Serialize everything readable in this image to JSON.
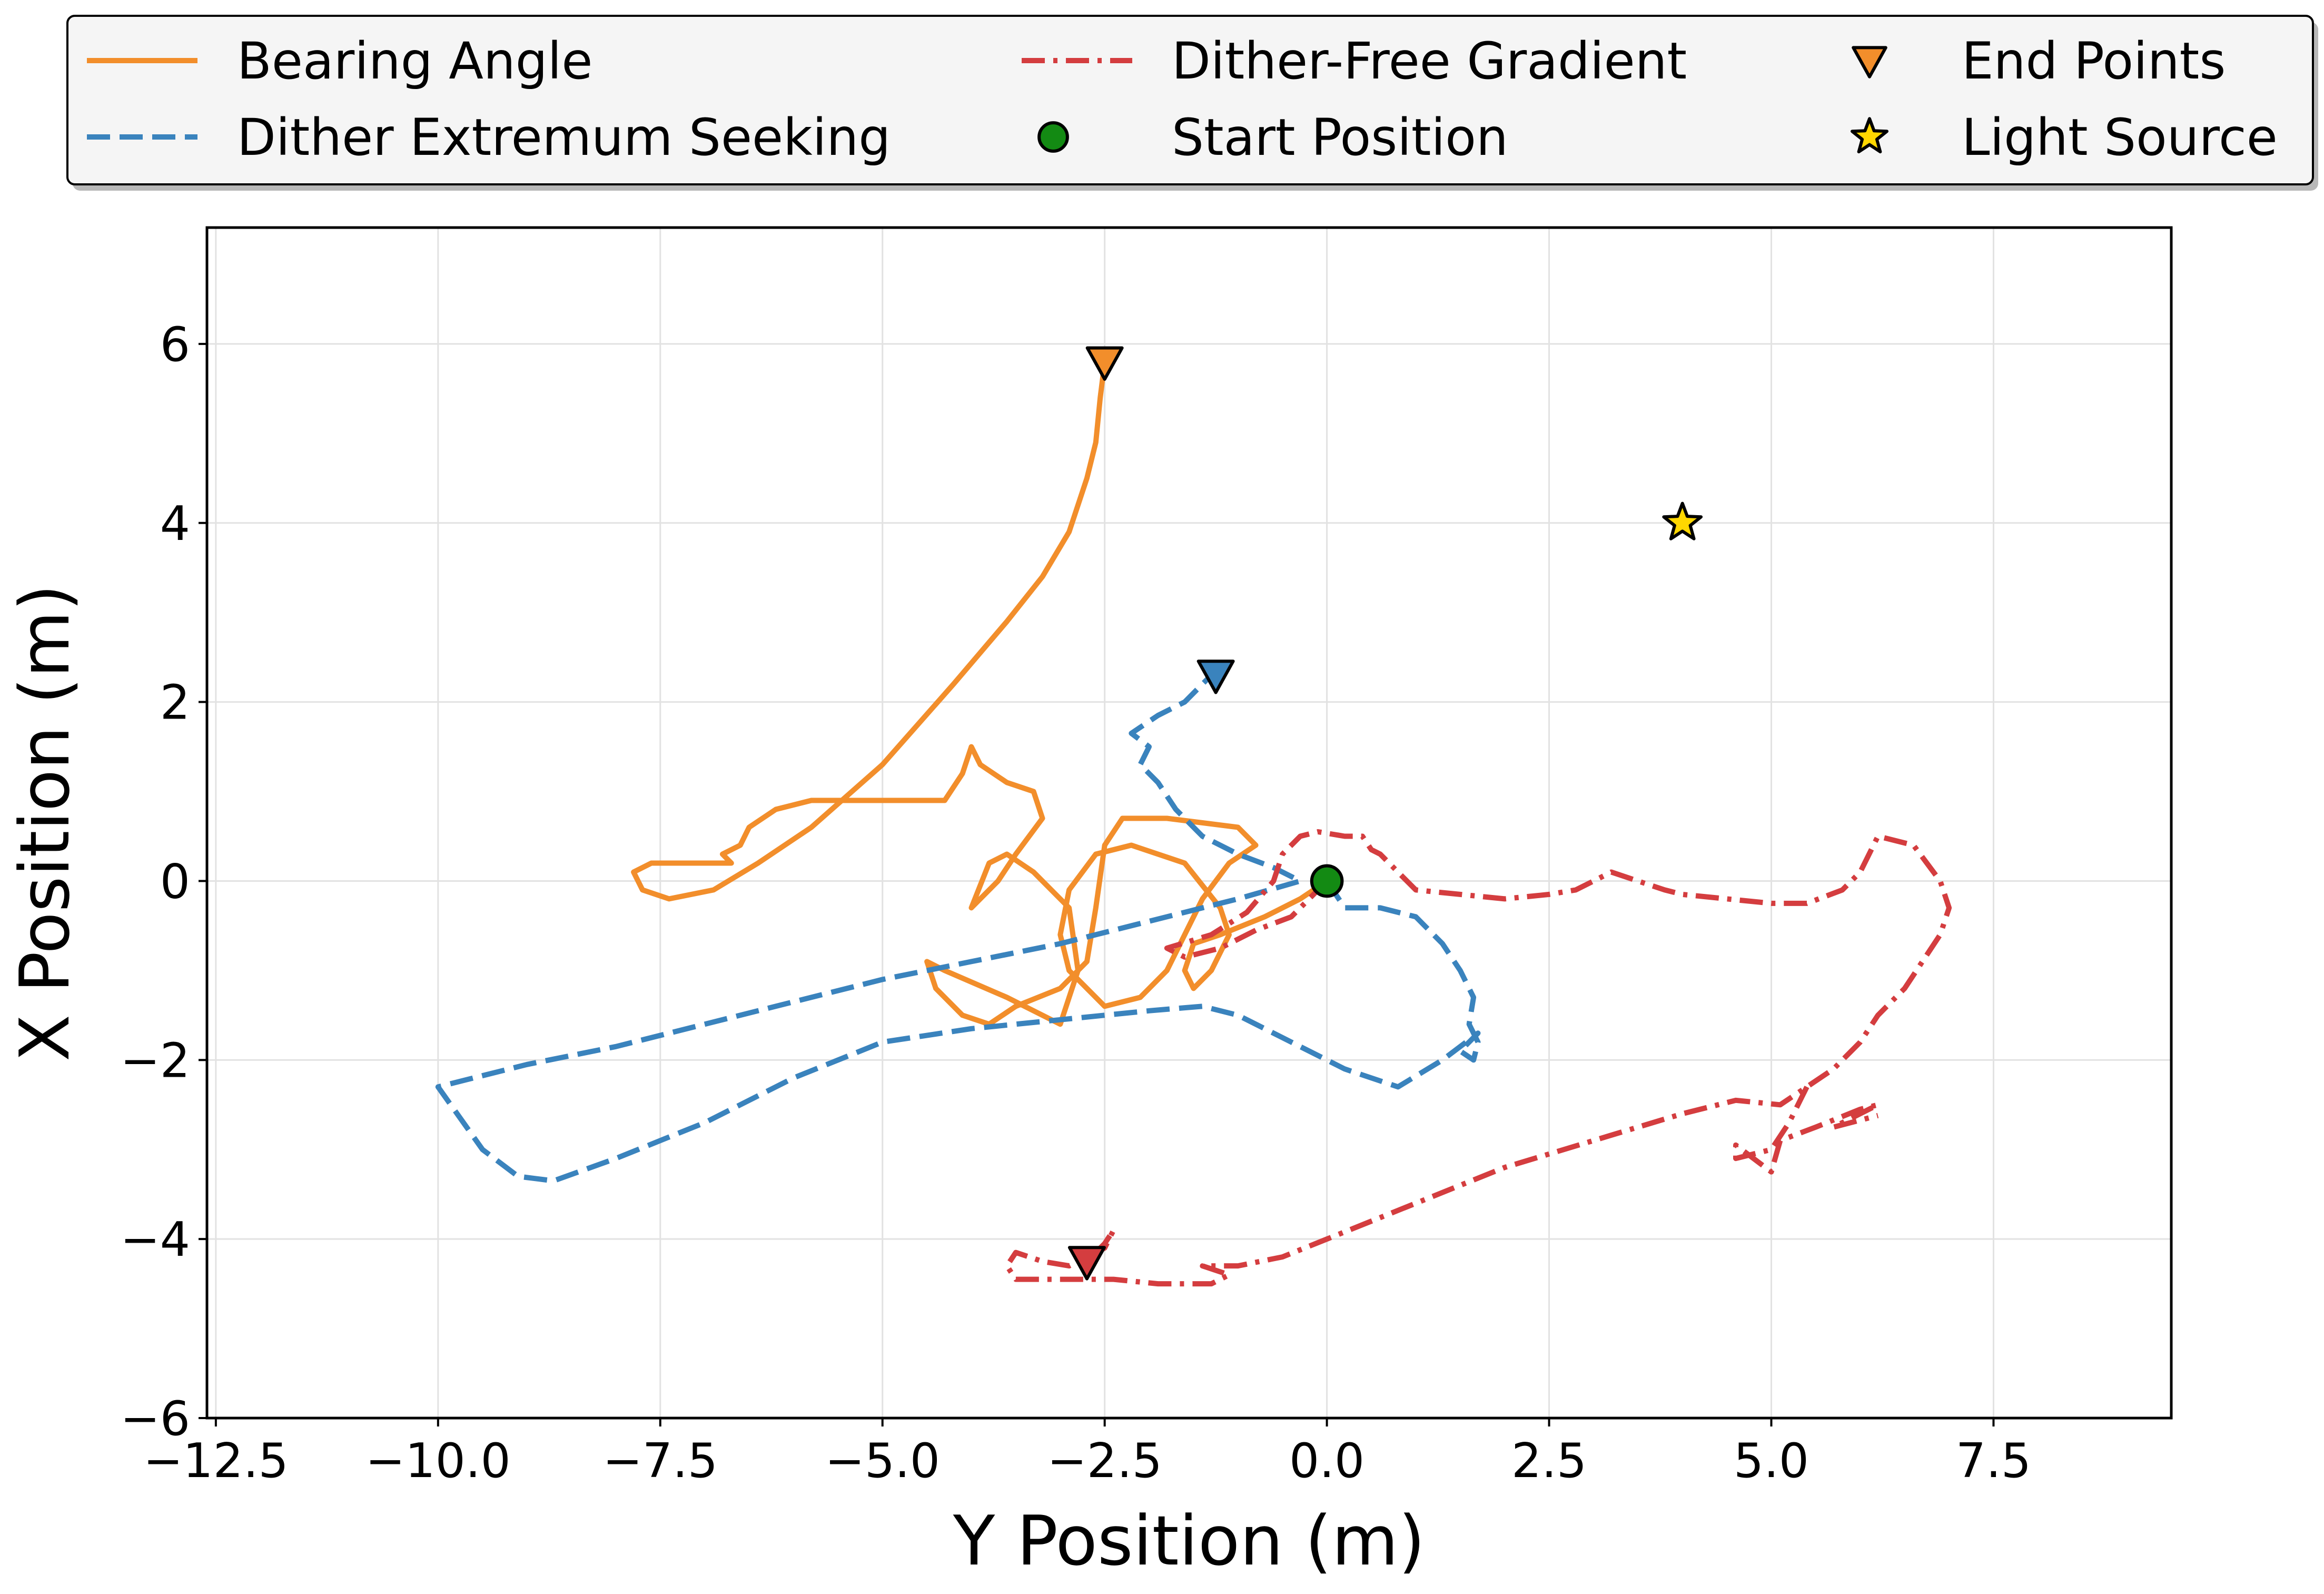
{
  "chart_data": {
    "type": "line",
    "title": "",
    "xlabel": "Y Position (m)",
    "ylabel": "X Position (m)",
    "xlim": [
      -12.6,
      9.5
    ],
    "ylim": [
      -6.0,
      7.3
    ],
    "xticks": [
      -12.5,
      -10.0,
      -7.5,
      -5.0,
      -2.5,
      0.0,
      2.5,
      5.0,
      7.5
    ],
    "xtick_labels": [
      "−12.5",
      "−10.0",
      "−7.5",
      "−5.0",
      "−2.5",
      "0.0",
      "2.5",
      "5.0",
      "7.5"
    ],
    "yticks": [
      -6,
      -4,
      -2,
      0,
      2,
      4,
      6
    ],
    "ytick_labels": [
      "−6",
      "−4",
      "−2",
      "0",
      "2",
      "4",
      "6"
    ],
    "grid": true,
    "legend_position": "top",
    "series": [
      {
        "name": "Bearing Angle",
        "style": "solid",
        "color": "#f28e2b",
        "points": [
          [
            0,
            0
          ],
          [
            -0.3,
            -0.2
          ],
          [
            -0.7,
            -0.4
          ],
          [
            -1.2,
            -0.6
          ],
          [
            -1.5,
            -0.7
          ],
          [
            -1.6,
            -1.0
          ],
          [
            -1.5,
            -1.2
          ],
          [
            -1.3,
            -1.0
          ],
          [
            -1.1,
            -0.6
          ],
          [
            -1.2,
            -0.3
          ],
          [
            -1.6,
            0.2
          ],
          [
            -2.2,
            0.4
          ],
          [
            -2.6,
            0.3
          ],
          [
            -2.9,
            -0.1
          ],
          [
            -3.0,
            -0.6
          ],
          [
            -2.9,
            -1.0
          ],
          [
            -2.5,
            -1.4
          ],
          [
            -2.1,
            -1.3
          ],
          [
            -1.8,
            -1.0
          ],
          [
            -1.6,
            -0.6
          ],
          [
            -1.4,
            -0.2
          ],
          [
            -1.1,
            0.2
          ],
          [
            -0.8,
            0.4
          ],
          [
            -1.0,
            0.6
          ],
          [
            -1.8,
            0.7
          ],
          [
            -2.3,
            0.7
          ],
          [
            -2.5,
            0.4
          ],
          [
            -2.6,
            -0.3
          ],
          [
            -2.7,
            -0.9
          ],
          [
            -3.0,
            -1.2
          ],
          [
            -3.5,
            -1.4
          ],
          [
            -3.8,
            -1.6
          ],
          [
            -4.1,
            -1.5
          ],
          [
            -4.4,
            -1.2
          ],
          [
            -4.5,
            -0.9
          ],
          [
            -4.3,
            -1.0
          ],
          [
            -3.6,
            -1.3
          ],
          [
            -3.0,
            -1.6
          ],
          [
            -2.8,
            -1.0
          ],
          [
            -2.9,
            -0.3
          ],
          [
            -3.3,
            0.1
          ],
          [
            -3.6,
            0.3
          ],
          [
            -3.8,
            0.2
          ],
          [
            -4.0,
            -0.3
          ],
          [
            -3.7,
            0.0
          ],
          [
            -3.5,
            0.3
          ],
          [
            -3.2,
            0.7
          ],
          [
            -3.3,
            1.0
          ],
          [
            -3.6,
            1.1
          ],
          [
            -3.9,
            1.3
          ],
          [
            -4.0,
            1.5
          ],
          [
            -4.1,
            1.2
          ],
          [
            -4.3,
            0.9
          ],
          [
            -5.0,
            0.9
          ],
          [
            -5.8,
            0.9
          ],
          [
            -6.2,
            0.8
          ],
          [
            -6.5,
            0.6
          ],
          [
            -6.6,
            0.4
          ],
          [
            -6.8,
            0.3
          ],
          [
            -6.7,
            0.2
          ],
          [
            -7.1,
            0.2
          ],
          [
            -7.6,
            0.2
          ],
          [
            -7.8,
            0.1
          ],
          [
            -7.7,
            -0.1
          ],
          [
            -7.4,
            -0.2
          ],
          [
            -6.9,
            -0.1
          ],
          [
            -6.4,
            0.2
          ],
          [
            -5.8,
            0.6
          ],
          [
            -5.0,
            1.3
          ],
          [
            -4.2,
            2.2
          ],
          [
            -3.6,
            2.9
          ],
          [
            -3.2,
            3.4
          ],
          [
            -2.9,
            3.9
          ],
          [
            -2.7,
            4.5
          ],
          [
            -2.6,
            4.9
          ],
          [
            -2.55,
            5.4
          ],
          [
            -2.5,
            5.8
          ]
        ]
      },
      {
        "name": "Dither Extremum Seeking",
        "style": "dashed",
        "color": "#3a83bd",
        "points": [
          [
            0,
            0
          ],
          [
            0.2,
            -0.3
          ],
          [
            0.6,
            -0.3
          ],
          [
            1.0,
            -0.4
          ],
          [
            1.3,
            -0.7
          ],
          [
            1.5,
            -1.0
          ],
          [
            1.65,
            -1.3
          ],
          [
            1.6,
            -1.6
          ],
          [
            1.7,
            -1.8
          ],
          [
            1.65,
            -2.0
          ],
          [
            1.5,
            -1.9
          ],
          [
            1.7,
            -1.7
          ],
          [
            1.3,
            -2.0
          ],
          [
            0.8,
            -2.3
          ],
          [
            0.2,
            -2.1
          ],
          [
            -0.4,
            -1.8
          ],
          [
            -1.0,
            -1.5
          ],
          [
            -1.4,
            -1.4
          ],
          [
            -2.0,
            -1.45
          ],
          [
            -3.0,
            -1.55
          ],
          [
            -4.0,
            -1.65
          ],
          [
            -5.0,
            -1.8
          ],
          [
            -6.0,
            -2.2
          ],
          [
            -7.0,
            -2.7
          ],
          [
            -8.0,
            -3.1
          ],
          [
            -8.7,
            -3.35
          ],
          [
            -9.1,
            -3.3
          ],
          [
            -9.5,
            -3.0
          ],
          [
            -10.0,
            -2.3
          ],
          [
            -9.0,
            -2.05
          ],
          [
            -8.0,
            -1.85
          ],
          [
            -7.0,
            -1.6
          ],
          [
            -6.0,
            -1.35
          ],
          [
            -5.0,
            -1.1
          ],
          [
            -4.0,
            -0.9
          ],
          [
            -3.0,
            -0.7
          ],
          [
            -2.0,
            -0.45
          ],
          [
            -1.0,
            -0.2
          ],
          [
            -0.3,
            0.0
          ],
          [
            -0.6,
            0.15
          ],
          [
            -1.0,
            0.3
          ],
          [
            -1.4,
            0.5
          ],
          [
            -1.7,
            0.8
          ],
          [
            -1.9,
            1.1
          ],
          [
            -2.1,
            1.3
          ],
          [
            -2.0,
            1.5
          ],
          [
            -2.2,
            1.65
          ],
          [
            -1.9,
            1.85
          ],
          [
            -1.6,
            2.0
          ],
          [
            -1.3,
            2.3
          ]
        ]
      },
      {
        "name": "Dither-Free Gradient",
        "style": "dashdot",
        "color": "#d43d3f",
        "points": [
          [
            0,
            0
          ],
          [
            -0.4,
            -0.4
          ],
          [
            -0.8,
            -0.55
          ],
          [
            -1.2,
            -0.75
          ],
          [
            -1.6,
            -0.85
          ],
          [
            -1.8,
            -0.75
          ],
          [
            -1.3,
            -0.6
          ],
          [
            -0.9,
            -0.35
          ],
          [
            -0.6,
            0.0
          ],
          [
            -0.5,
            0.3
          ],
          [
            -0.3,
            0.5
          ],
          [
            -0.1,
            0.55
          ],
          [
            0.2,
            0.5
          ],
          [
            0.4,
            0.5
          ],
          [
            0.5,
            0.35
          ],
          [
            0.6,
            0.3
          ],
          [
            0.8,
            0.1
          ],
          [
            1.0,
            -0.1
          ],
          [
            1.5,
            -0.15
          ],
          [
            2.0,
            -0.2
          ],
          [
            2.5,
            -0.15
          ],
          [
            2.8,
            -0.1
          ],
          [
            3.0,
            0.0
          ],
          [
            3.2,
            0.1
          ],
          [
            3.5,
            0.0
          ],
          [
            3.8,
            -0.1
          ],
          [
            4.0,
            -0.15
          ],
          [
            4.5,
            -0.2
          ],
          [
            5.0,
            -0.25
          ],
          [
            5.4,
            -0.25
          ],
          [
            5.8,
            -0.1
          ],
          [
            6.0,
            0.1
          ],
          [
            6.1,
            0.3
          ],
          [
            6.2,
            0.5
          ],
          [
            6.6,
            0.4
          ],
          [
            6.9,
            0.0
          ],
          [
            7.0,
            -0.3
          ],
          [
            6.9,
            -0.6
          ],
          [
            6.7,
            -0.9
          ],
          [
            6.5,
            -1.2
          ],
          [
            6.2,
            -1.5
          ],
          [
            6.0,
            -1.8
          ],
          [
            5.7,
            -2.1
          ],
          [
            5.4,
            -2.3
          ],
          [
            5.1,
            -2.5
          ],
          [
            4.6,
            -2.45
          ],
          [
            4.0,
            -2.6
          ],
          [
            3.5,
            -2.75
          ],
          [
            3.0,
            -2.9
          ],
          [
            2.0,
            -3.2
          ],
          [
            1.0,
            -3.6
          ],
          [
            0.0,
            -4.0
          ],
          [
            -0.5,
            -4.2
          ],
          [
            -1.0,
            -4.3
          ],
          [
            -1.4,
            -4.3
          ],
          [
            -1.1,
            -4.4
          ],
          [
            -1.3,
            -4.5
          ],
          [
            -1.9,
            -4.5
          ],
          [
            -2.4,
            -4.45
          ],
          [
            -3.0,
            -4.45
          ],
          [
            -3.5,
            -4.45
          ],
          [
            -3.6,
            -4.3
          ],
          [
            -3.5,
            -4.15
          ],
          [
            -3.2,
            -4.25
          ],
          [
            -2.9,
            -4.3
          ],
          [
            -2.7,
            -4.2
          ],
          [
            -2.5,
            -4.1
          ],
          [
            -2.4,
            -3.9
          ],
          [
            -2.5,
            -4.05
          ],
          [
            -2.7,
            -4.25
          ]
        ]
      },
      {
        "name": "Dither-Free Gradient (branch)",
        "style": "dashdot",
        "color": "#d43d3f",
        "legend": false,
        "points": [
          [
            5.4,
            -2.3
          ],
          [
            5.2,
            -2.7
          ],
          [
            5.0,
            -3.0
          ],
          [
            4.6,
            -3.1
          ],
          [
            4.6,
            -2.95
          ],
          [
            5.0,
            -3.25
          ],
          [
            5.1,
            -2.9
          ],
          [
            5.5,
            -2.75
          ],
          [
            6.0,
            -2.55
          ],
          [
            6.2,
            -2.5
          ],
          [
            5.7,
            -2.75
          ],
          [
            6.2,
            -2.62
          ]
        ]
      }
    ],
    "markers": [
      {
        "name": "End Points",
        "shape": "triangle-down",
        "color": "#f28e2b",
        "point": [
          -2.5,
          5.8
        ]
      },
      {
        "name": "End Points",
        "shape": "triangle-down",
        "color": "#3a83bd",
        "point": [
          -1.25,
          2.3
        ]
      },
      {
        "name": "End Points",
        "shape": "triangle-down",
        "color": "#d43d3f",
        "point": [
          -2.7,
          -4.25
        ]
      },
      {
        "name": "Start Position",
        "shape": "circle",
        "color": "#138a13",
        "point": [
          0,
          0
        ]
      },
      {
        "name": "Light Source",
        "shape": "star",
        "color": "#ffd700",
        "point": [
          4.0,
          4.0
        ]
      }
    ],
    "legend": {
      "entries": [
        {
          "label": "Bearing Angle",
          "type": "line",
          "style": "solid",
          "color": "#f28e2b"
        },
        {
          "label": "Dither Extremum Seeking",
          "type": "line",
          "style": "dashed",
          "color": "#3a83bd"
        },
        {
          "label": "Dither-Free Gradient",
          "type": "line",
          "style": "dashdot",
          "color": "#d43d3f"
        },
        {
          "label": "Start Position",
          "type": "marker",
          "shape": "circle",
          "color": "#138a13"
        },
        {
          "label": "End Points",
          "type": "marker",
          "shape": "triangle-down",
          "color": "#f28e2b"
        },
        {
          "label": "Light Source",
          "type": "marker",
          "shape": "star",
          "color": "#ffd700"
        }
      ]
    }
  }
}
